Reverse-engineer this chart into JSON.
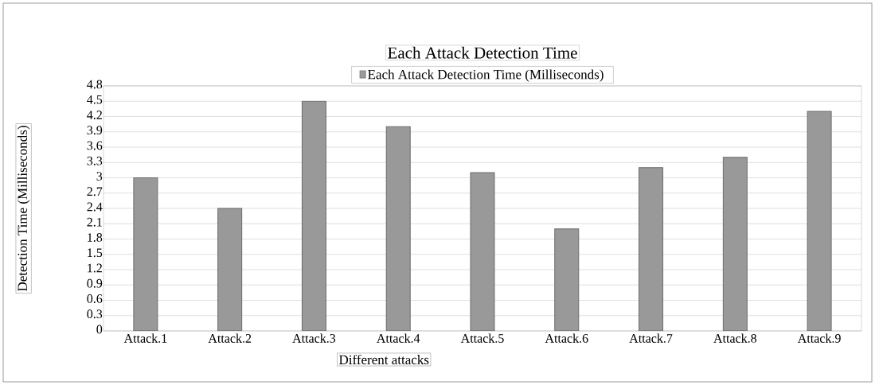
{
  "chart_data": {
    "type": "bar",
    "title": "Each Attack Detection Time",
    "xlabel": "Different attacks",
    "ylabel": "Detection Time (Milliseconds)",
    "categories": [
      "Attack.1",
      "Attack.2",
      "Attack.3",
      "Attack.4",
      "Attack.5",
      "Attack.6",
      "Attack.7",
      "Attack.8",
      "Attack.9"
    ],
    "series": [
      {
        "name": "Each Attack Detection Time (Milliseconds)",
        "color": "#999999",
        "values": [
          3.0,
          2.4,
          4.5,
          4.0,
          3.1,
          2.0,
          3.2,
          3.4,
          4.3
        ]
      }
    ],
    "ylim": [
      0,
      4.8
    ],
    "yticks": [
      {
        "value": 0,
        "label": "0"
      },
      {
        "value": 0.3,
        "label": "0.3"
      },
      {
        "value": 0.6,
        "label": "0.6"
      },
      {
        "value": 0.9,
        "label": "0.9"
      },
      {
        "value": 1.2,
        "label": "1.2"
      },
      {
        "value": 1.5,
        "label": "1.5"
      },
      {
        "value": 1.8,
        "label": "1.8"
      },
      {
        "value": 2.1,
        "label": "2.1"
      },
      {
        "value": 2.4,
        "label": "2.4"
      },
      {
        "value": 2.7,
        "label": "2.7"
      },
      {
        "value": 3,
        "label": "3"
      },
      {
        "value": 3.3,
        "label": "3.3"
      },
      {
        "value": 3.6,
        "label": "3.6"
      },
      {
        "value": 3.9,
        "label": "3.9"
      },
      {
        "value": 4.2,
        "label": "4.2"
      },
      {
        "value": 4.5,
        "label": "4.5"
      },
      {
        "value": 4.8,
        "label": "4.8"
      }
    ],
    "grid": "y",
    "legend": "top"
  }
}
